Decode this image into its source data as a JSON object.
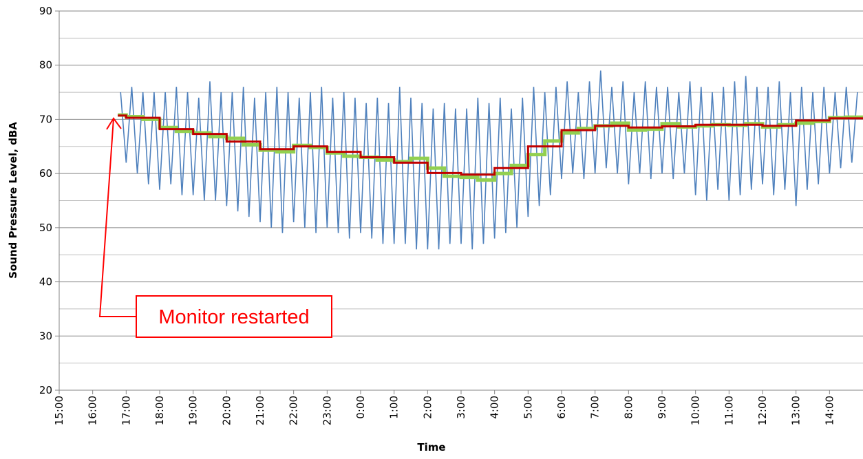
{
  "chart_data": {
    "type": "line",
    "xlabel": "Time",
    "ylabel": "Sound Pressure Level, dBA",
    "annotation": "Monitor restarted",
    "xlim": [
      "15:00",
      "15:00"
    ],
    "xticks": [
      "15:00",
      "16:00",
      "17:00",
      "18:00",
      "19:00",
      "20:00",
      "21:00",
      "22:00",
      "23:00",
      "0:00",
      "1:00",
      "2:00",
      "3:00",
      "4:00",
      "5:00",
      "6:00",
      "7:00",
      "8:00",
      "9:00",
      "10:00",
      "11:00",
      "12:00",
      "13:00",
      "14:00"
    ],
    "ylim": [
      20,
      90
    ],
    "yticks": [
      20,
      30,
      40,
      50,
      60,
      70,
      80,
      90
    ],
    "yminor_grid": [
      25,
      35,
      45,
      55,
      65,
      75,
      85
    ],
    "grid": true,
    "series": [
      {
        "color": "#4f81bd",
        "step": "none",
        "x": [
          "16:50",
          "17:00",
          "17:10",
          "17:20",
          "17:30",
          "17:40",
          "17:50",
          "18:00",
          "18:10",
          "18:20",
          "18:30",
          "18:40",
          "18:50",
          "19:00",
          "19:10",
          "19:20",
          "19:30",
          "19:40",
          "19:50",
          "20:00",
          "20:10",
          "20:20",
          "20:30",
          "20:40",
          "20:50",
          "21:00",
          "21:10",
          "21:20",
          "21:30",
          "21:40",
          "21:50",
          "22:00",
          "22:10",
          "22:20",
          "22:30",
          "22:40",
          "22:50",
          "23:00",
          "23:10",
          "23:20",
          "23:30",
          "23:40",
          "23:50",
          "0:00",
          "0:10",
          "0:20",
          "0:30",
          "0:40",
          "0:50",
          "1:00",
          "1:10",
          "1:20",
          "1:30",
          "1:40",
          "1:50",
          "2:00",
          "2:10",
          "2:20",
          "2:30",
          "2:40",
          "2:50",
          "3:00",
          "3:10",
          "3:20",
          "3:30",
          "3:40",
          "3:50",
          "4:00",
          "4:10",
          "4:20",
          "4:30",
          "4:40",
          "4:50",
          "5:00",
          "5:10",
          "5:20",
          "5:30",
          "5:40",
          "5:50",
          "6:00",
          "6:10",
          "6:20",
          "6:30",
          "6:40",
          "6:50",
          "7:00",
          "7:10",
          "7:20",
          "7:30",
          "7:40",
          "7:50",
          "8:00",
          "8:10",
          "8:20",
          "8:30",
          "8:40",
          "8:50",
          "9:00",
          "9:10",
          "9:20",
          "9:30",
          "9:40",
          "9:50",
          "10:00",
          "10:10",
          "10:20",
          "10:30",
          "10:40",
          "10:50",
          "11:00",
          "11:10",
          "11:20",
          "11:30",
          "11:40",
          "11:50",
          "12:00",
          "12:10",
          "12:20",
          "12:30",
          "12:40",
          "12:50",
          "13:00",
          "13:10",
          "13:20",
          "13:30",
          "13:40",
          "13:50",
          "14:00",
          "14:10",
          "14:20",
          "14:30",
          "14:40",
          "14:50"
        ],
        "values": [
          75,
          62,
          76,
          60,
          75,
          58,
          75,
          57,
          75,
          58,
          76,
          56,
          75,
          56,
          74,
          55,
          77,
          55,
          75,
          54,
          75,
          53,
          76,
          52,
          74,
          51,
          75,
          50,
          76,
          49,
          75,
          51,
          74,
          50,
          75,
          49,
          76,
          50,
          74,
          49,
          75,
          48,
          74,
          49,
          73,
          48,
          74,
          47,
          73,
          47,
          76,
          47,
          74,
          46,
          73,
          46,
          72,
          46,
          73,
          47,
          72,
          47,
          72,
          46,
          74,
          47,
          73,
          48,
          74,
          49,
          72,
          50,
          74,
          52,
          76,
          54,
          75,
          56,
          76,
          59,
          77,
          60,
          75,
          59,
          77,
          60,
          79,
          61,
          76,
          60,
          77,
          58,
          75,
          60,
          77,
          59,
          76,
          60,
          76,
          59,
          75,
          60,
          77,
          56,
          76,
          55,
          75,
          57,
          76,
          55,
          77,
          56,
          78,
          57,
          76,
          58,
          76,
          56,
          77,
          57,
          75,
          54,
          76,
          57,
          75,
          58,
          76,
          60,
          75,
          61,
          76,
          62,
          75
        ]
      },
      {
        "color": "#92d050",
        "step": "post",
        "x": [
          "16:45",
          "17:00",
          "17:30",
          "18:00",
          "18:30",
          "19:00",
          "19:30",
          "20:00",
          "20:30",
          "21:00",
          "21:30",
          "22:00",
          "22:30",
          "23:00",
          "23:30",
          "0:00",
          "0:30",
          "1:00",
          "1:30",
          "2:00",
          "2:30",
          "3:00",
          "3:30",
          "4:00",
          "4:30",
          "5:00",
          "5:30",
          "6:00",
          "6:30",
          "7:00",
          "7:30",
          "8:00",
          "8:30",
          "9:00",
          "9:30",
          "10:00",
          "10:30",
          "11:00",
          "11:30",
          "12:00",
          "12:30",
          "13:00",
          "13:30",
          "14:00",
          "14:30"
        ],
        "values": [
          70.8,
          70.5,
          70.0,
          68.5,
          67.8,
          67.5,
          66.8,
          66.5,
          65.3,
          64.3,
          64.0,
          65.2,
          64.8,
          63.8,
          63.2,
          63.0,
          62.5,
          62.2,
          62.8,
          61.0,
          59.5,
          59.3,
          58.8,
          60.0,
          61.5,
          63.5,
          66.0,
          67.5,
          68.3,
          68.8,
          69.3,
          68.0,
          68.2,
          69.2,
          68.6,
          68.8,
          69.0,
          68.9,
          69.2,
          68.6,
          69.0,
          69.3,
          69.6,
          70.3,
          70.4
        ]
      },
      {
        "color": "#c00000",
        "step": "post",
        "x": [
          "16:45",
          "17:00",
          "18:00",
          "19:00",
          "20:00",
          "21:00",
          "22:00",
          "23:00",
          "0:00",
          "1:00",
          "2:00",
          "3:00",
          "4:00",
          "5:00",
          "6:00",
          "7:00",
          "8:00",
          "9:00",
          "10:00",
          "11:00",
          "12:00",
          "13:00",
          "14:00"
        ],
        "values": [
          70.7,
          70.3,
          68.2,
          67.3,
          65.9,
          64.5,
          65.0,
          64.0,
          63.0,
          62.0,
          60.1,
          59.8,
          61.0,
          65.0,
          68.0,
          68.8,
          68.5,
          68.7,
          69.0,
          69.0,
          68.8,
          69.8,
          70.2
        ]
      }
    ]
  }
}
